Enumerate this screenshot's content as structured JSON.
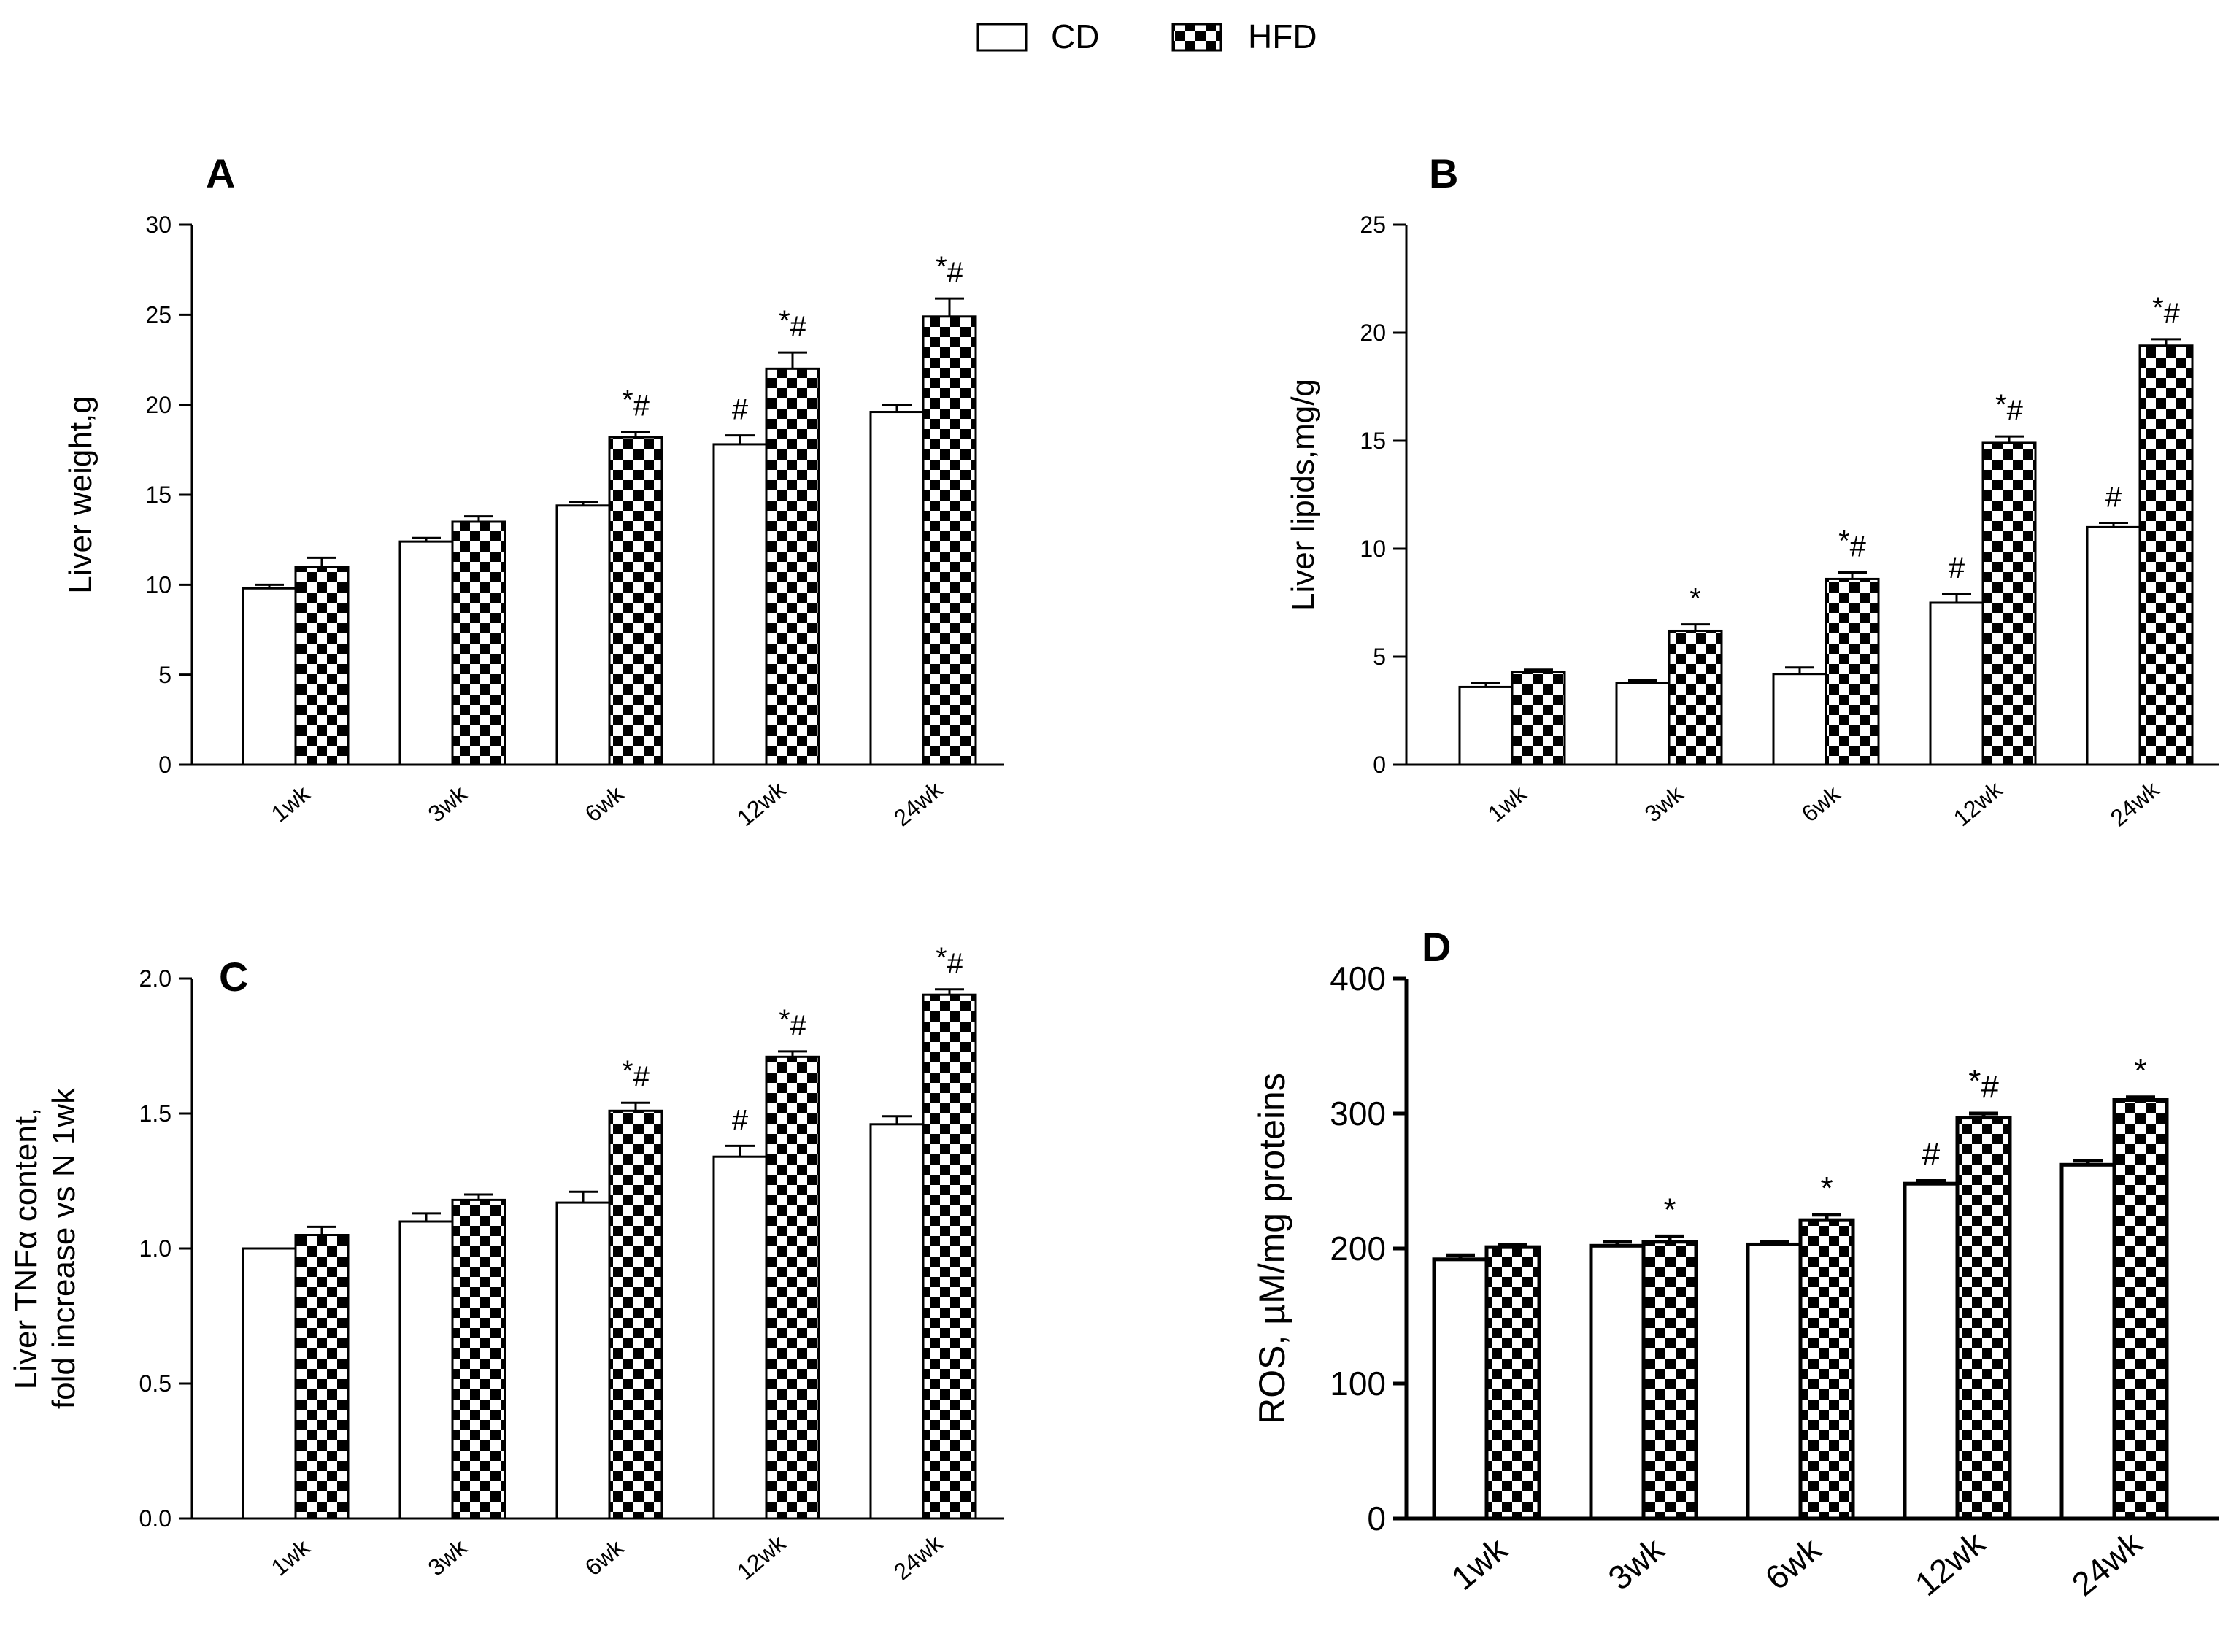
{
  "legend": {
    "items": [
      {
        "label": "CD",
        "pattern": "open"
      },
      {
        "label": "HFD",
        "pattern": "checker"
      }
    ]
  },
  "colors": {
    "bar_fill": "#ffffff",
    "ink": "#000000"
  },
  "chart_data": [
    {
      "panel": "A",
      "type": "bar",
      "categories": [
        "1wk",
        "3wk",
        "6wk",
        "12wk",
        "24wk"
      ],
      "ylabel": "Liver weight,g",
      "ylim": [
        0,
        30
      ],
      "yticks": [
        "0",
        "5",
        "10",
        "15",
        "20",
        "25",
        "30"
      ],
      "series": [
        {
          "name": "CD",
          "values": [
            9.8,
            12.4,
            14.4,
            17.8,
            19.6
          ],
          "errors": [
            0.2,
            0.2,
            0.2,
            0.5,
            0.4
          ],
          "annotations": [
            "",
            "",
            "",
            "#",
            ""
          ]
        },
        {
          "name": "HFD",
          "values": [
            11.0,
            13.5,
            18.2,
            22.0,
            24.9
          ],
          "errors": [
            0.5,
            0.3,
            0.3,
            0.9,
            1.0
          ],
          "annotations": [
            "",
            "",
            "*#",
            "*#",
            "*#"
          ]
        }
      ]
    },
    {
      "panel": "B",
      "type": "bar",
      "categories": [
        "1wk",
        "3wk",
        "6wk",
        "12wk",
        "24wk"
      ],
      "ylabel": "Liver lipids,mg/g",
      "ylim": [
        0,
        25
      ],
      "yticks": [
        "0",
        "5",
        "10",
        "15",
        "20",
        "25"
      ],
      "series": [
        {
          "name": "CD",
          "values": [
            3.6,
            3.8,
            4.2,
            7.5,
            11.0
          ],
          "errors": [
            0.2,
            0.1,
            0.3,
            0.4,
            0.2
          ],
          "annotations": [
            "",
            "",
            "",
            "#",
            "#"
          ]
        },
        {
          "name": "HFD",
          "values": [
            4.3,
            6.2,
            8.6,
            14.9,
            19.4
          ],
          "errors": [
            0.1,
            0.3,
            0.3,
            0.3,
            0.3
          ],
          "annotations": [
            "",
            "*",
            "*#",
            "*#",
            "*#"
          ]
        }
      ]
    },
    {
      "panel": "C",
      "type": "bar",
      "categories": [
        "1wk",
        "3wk",
        "6wk",
        "12wk",
        "24wk"
      ],
      "ylabel": [
        "Liver TNFα content,",
        "fold increase vs N 1wk"
      ],
      "ylim": [
        0,
        2
      ],
      "yticks": [
        "0.0",
        "0.5",
        "1.0",
        "1.5",
        "2.0"
      ],
      "series": [
        {
          "name": "CD",
          "values": [
            1.0,
            1.1,
            1.17,
            1.34,
            1.46
          ],
          "errors": [
            0.0,
            0.03,
            0.04,
            0.04,
            0.03
          ],
          "annotations": [
            "",
            "",
            "",
            "#",
            ""
          ]
        },
        {
          "name": "HFD",
          "values": [
            1.05,
            1.18,
            1.51,
            1.71,
            1.94
          ],
          "errors": [
            0.03,
            0.02,
            0.03,
            0.02,
            0.02
          ],
          "annotations": [
            "",
            "",
            "*#",
            "*#",
            "*#"
          ]
        }
      ]
    },
    {
      "panel": "D",
      "type": "bar",
      "categories": [
        "1wk",
        "3wk",
        "6wk",
        "12wk",
        "24wk"
      ],
      "ylabel": "ROS, µM/mg proteins",
      "ylim": [
        0,
        400
      ],
      "yticks": [
        "0",
        "100",
        "200",
        "300",
        "400"
      ],
      "series": [
        {
          "name": "CD",
          "values": [
            192,
            202,
            203,
            248,
            262
          ],
          "errors": [
            3,
            3,
            2,
            2,
            3
          ],
          "annotations": [
            "",
            "",
            "",
            "#",
            ""
          ]
        },
        {
          "name": "HFD",
          "values": [
            201,
            205,
            221,
            297,
            310
          ],
          "errors": [
            2,
            4,
            4,
            3,
            2
          ],
          "annotations": [
            "",
            "*",
            "*",
            "*#",
            "*"
          ]
        }
      ]
    }
  ]
}
